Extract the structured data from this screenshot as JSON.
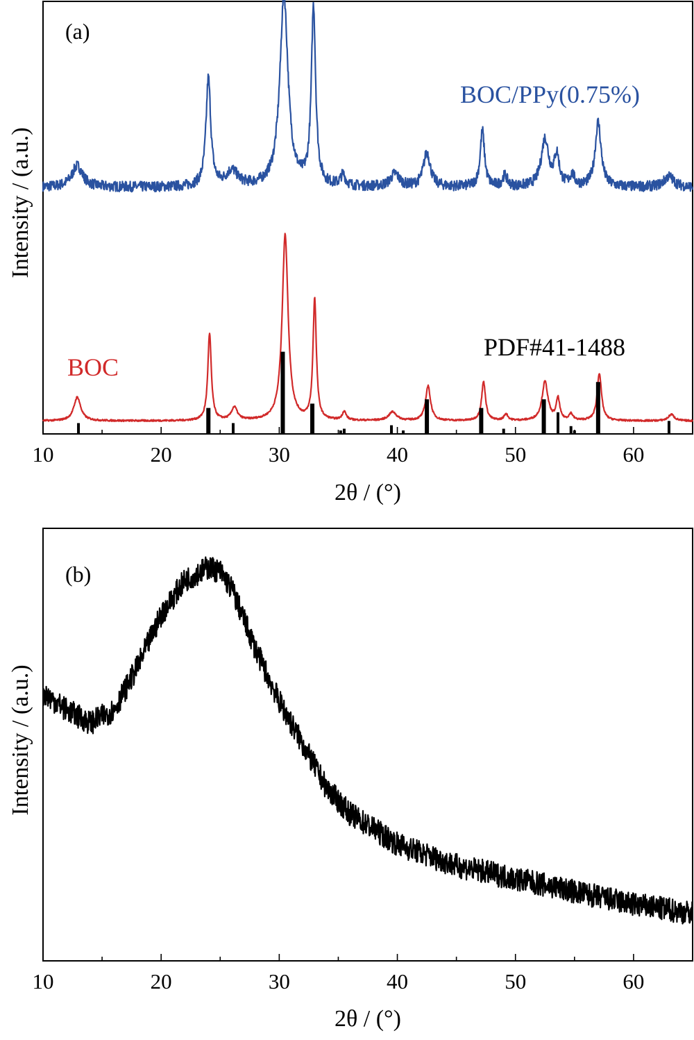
{
  "chart_data": [
    {
      "type": "line",
      "panel_label": "(a)",
      "xlabel": "2θ / (°)",
      "ylabel": "Intensity / (a.u.)",
      "xlim": [
        10,
        65
      ],
      "x_ticks": [
        10,
        20,
        30,
        40,
        50,
        60
      ],
      "y_ticks": [],
      "grid": false,
      "series": [
        {
          "name": "BOC/PPy(0.75%)",
          "color": "#2a52a0",
          "baseline": 0.57,
          "noise": 0.012,
          "peaks": [
            {
              "x": 12.9,
              "h": 0.05,
              "w": 0.55
            },
            {
              "x": 24.0,
              "h": 0.25,
              "w": 0.24
            },
            {
              "x": 26.0,
              "h": 0.035,
              "w": 0.6
            },
            {
              "x": 30.4,
              "h": 0.44,
              "w": 0.42
            },
            {
              "x": 32.9,
              "h": 0.41,
              "w": 0.22
            },
            {
              "x": 35.4,
              "h": 0.025,
              "w": 0.25
            },
            {
              "x": 39.8,
              "h": 0.03,
              "w": 0.45
            },
            {
              "x": 42.5,
              "h": 0.08,
              "w": 0.35
            },
            {
              "x": 47.2,
              "h": 0.13,
              "w": 0.22
            },
            {
              "x": 49.1,
              "h": 0.025,
              "w": 0.25
            },
            {
              "x": 52.5,
              "h": 0.11,
              "w": 0.38
            },
            {
              "x": 53.5,
              "h": 0.07,
              "w": 0.25
            },
            {
              "x": 54.8,
              "h": 0.025,
              "w": 0.25
            },
            {
              "x": 57.0,
              "h": 0.15,
              "w": 0.3
            },
            {
              "x": 63.0,
              "h": 0.025,
              "w": 0.5
            }
          ]
        },
        {
          "name": "BOC",
          "color": "#d12a2a",
          "baseline": 0.03,
          "noise": 0.002,
          "peaks": [
            {
              "x": 12.9,
              "h": 0.055,
              "w": 0.35
            },
            {
              "x": 24.1,
              "h": 0.2,
              "w": 0.18
            },
            {
              "x": 26.2,
              "h": 0.03,
              "w": 0.3
            },
            {
              "x": 30.5,
              "h": 0.43,
              "w": 0.3
            },
            {
              "x": 33.0,
              "h": 0.28,
              "w": 0.17
            },
            {
              "x": 35.5,
              "h": 0.02,
              "w": 0.2
            },
            {
              "x": 39.6,
              "h": 0.02,
              "w": 0.4
            },
            {
              "x": 42.6,
              "h": 0.08,
              "w": 0.25
            },
            {
              "x": 47.3,
              "h": 0.09,
              "w": 0.2
            },
            {
              "x": 49.2,
              "h": 0.015,
              "w": 0.2
            },
            {
              "x": 52.5,
              "h": 0.09,
              "w": 0.3
            },
            {
              "x": 53.6,
              "h": 0.05,
              "w": 0.18
            },
            {
              "x": 54.7,
              "h": 0.015,
              "w": 0.2
            },
            {
              "x": 57.1,
              "h": 0.11,
              "w": 0.22
            },
            {
              "x": 63.2,
              "h": 0.015,
              "w": 0.3
            }
          ]
        }
      ],
      "reference": {
        "label": "PDF#41-1488",
        "color": "#000000",
        "bars": [
          {
            "x": 13.0,
            "h": 0.025
          },
          {
            "x": 24.0,
            "h": 0.06
          },
          {
            "x": 26.1,
            "h": 0.025
          },
          {
            "x": 30.3,
            "h": 0.19
          },
          {
            "x": 32.8,
            "h": 0.07
          },
          {
            "x": 35.2,
            "h": 0.008
          },
          {
            "x": 35.5,
            "h": 0.012
          },
          {
            "x": 39.5,
            "h": 0.02
          },
          {
            "x": 40.5,
            "h": 0.008
          },
          {
            "x": 42.5,
            "h": 0.08
          },
          {
            "x": 47.1,
            "h": 0.06
          },
          {
            "x": 49.0,
            "h": 0.012
          },
          {
            "x": 52.4,
            "h": 0.08
          },
          {
            "x": 53.6,
            "h": 0.05
          },
          {
            "x": 54.7,
            "h": 0.018
          },
          {
            "x": 55.0,
            "h": 0.008
          },
          {
            "x": 57.0,
            "h": 0.12
          },
          {
            "x": 63.0,
            "h": 0.03
          }
        ]
      },
      "annotations": [
        {
          "text": "BOC/PPy(0.75%)",
          "color": "#2a52a0"
        },
        {
          "text": "BOC",
          "color": "#d12a2a"
        },
        {
          "text": "PDF#41-1488",
          "color": "#000000"
        }
      ]
    },
    {
      "type": "line",
      "panel_label": "(b)",
      "xlabel": "2θ / (°)",
      "ylabel": "Intensity / (a.u.)",
      "xlim": [
        10,
        65
      ],
      "x_ticks": [
        10,
        20,
        30,
        40,
        50,
        60
      ],
      "y_ticks": [],
      "grid": false,
      "series": [
        {
          "name": "",
          "color": "#000000",
          "noise": 0.028,
          "envelope": [
            [
              10,
              0.62
            ],
            [
              12,
              0.58
            ],
            [
              14,
              0.55
            ],
            [
              16,
              0.58
            ],
            [
              18,
              0.68
            ],
            [
              20,
              0.8
            ],
            [
              22,
              0.88
            ],
            [
              24,
              0.91
            ],
            [
              25,
              0.9
            ],
            [
              26,
              0.86
            ],
            [
              28,
              0.72
            ],
            [
              30,
              0.6
            ],
            [
              32,
              0.5
            ],
            [
              34,
              0.4
            ],
            [
              36,
              0.34
            ],
            [
              40,
              0.27
            ],
            [
              45,
              0.22
            ],
            [
              50,
              0.19
            ],
            [
              55,
              0.16
            ],
            [
              60,
              0.13
            ],
            [
              65,
              0.11
            ]
          ]
        }
      ]
    }
  ]
}
